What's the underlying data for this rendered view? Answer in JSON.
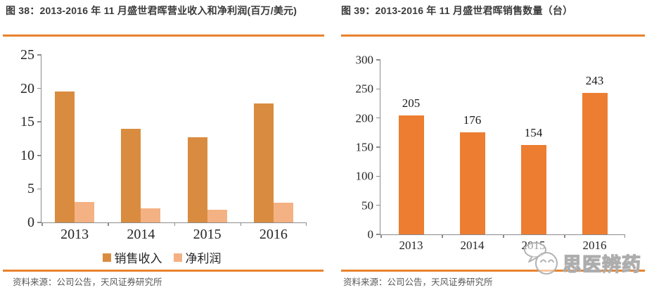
{
  "page": {
    "background": "#ffffff"
  },
  "colors": {
    "accent_rule": "#E8822D",
    "axis_line": "#8C8C8C",
    "title_text": "#3A3A3A",
    "source_text": "#595959",
    "tick_text": "#262626",
    "watermark_gray": "#ADADAD",
    "series_revenue": "#D98C3F",
    "series_profit": "#F4B183",
    "series_units": "#ED7D31"
  },
  "panels": [
    {
      "figure_label": "图 38",
      "title": "图 38：2013-2016 年 11 月盛世君晖营业收入和净利润(百万/美元)",
      "source": "资料来源：公司公告，天风证券研究所"
    },
    {
      "figure_label": "图 39",
      "title": "图 39：2013-2016 年 11 月盛世君晖销售数量（台）",
      "source": "资料来源：公司公告，天风证券研究所"
    }
  ],
  "watermark": {
    "text": "思医辨药",
    "icon": "mascot-chat-bubble-icon"
  },
  "chart_data": [
    {
      "type": "bar",
      "title": "2013-2016 年 11 月盛世君晖营业收入和净利润(百万/美元)",
      "categories": [
        "2013",
        "2014",
        "2015",
        "2016"
      ],
      "series": [
        {
          "name": "销售收入",
          "color": "#D98C3F",
          "values": [
            19.5,
            14.0,
            12.7,
            17.8
          ]
        },
        {
          "name": "净利润",
          "color": "#F4B183",
          "values": [
            3.0,
            2.1,
            1.9,
            2.9
          ]
        }
      ],
      "xlabel": "",
      "ylabel": "",
      "ylim": [
        0,
        25
      ],
      "yticks": [
        0,
        5,
        10,
        15,
        20,
        25
      ],
      "grid": false,
      "legend_position": "bottom",
      "show_data_labels": false
    },
    {
      "type": "bar",
      "title": "2013-2016 年 11 月盛世君晖销售数量（台）",
      "categories": [
        "2013",
        "2014",
        "2015",
        "2016"
      ],
      "series": [
        {
          "name": "销售数量",
          "color": "#ED7D31",
          "values": [
            205,
            176,
            154,
            243
          ]
        }
      ],
      "xlabel": "",
      "ylabel": "",
      "ylim": [
        0,
        300
      ],
      "yticks": [
        0,
        50,
        100,
        150,
        200,
        250,
        300
      ],
      "grid": false,
      "legend_position": "none",
      "show_data_labels": true
    }
  ]
}
